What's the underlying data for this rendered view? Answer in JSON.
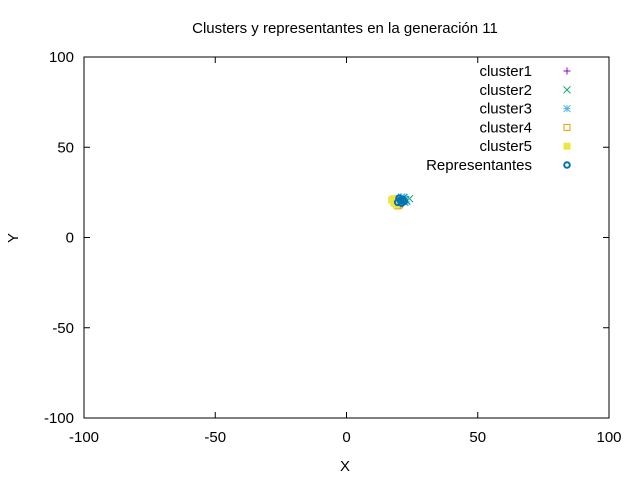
{
  "chart_data": {
    "type": "scatter",
    "title": "Clusters y representantes en la generación 11",
    "xlabel": "X",
    "ylabel": "Y",
    "xlim": [
      -100,
      100
    ],
    "ylim": [
      -100,
      100
    ],
    "xticks": [
      "-100",
      "-50",
      "0",
      "50",
      "100"
    ],
    "yticks": [
      "100",
      "50",
      "0",
      "-50",
      "-100"
    ],
    "grid": false,
    "legend_position": "top-right",
    "series": [
      {
        "name": "cluster1",
        "marker": "plus",
        "color": "#9400d3",
        "points": [
          [
            20.5,
            20.2
          ],
          [
            21.3,
            19.8
          ],
          [
            19.9,
            21.0
          ],
          [
            22.0,
            20.5
          ],
          [
            20.8,
            18.9
          ]
        ]
      },
      {
        "name": "cluster2",
        "marker": "cross",
        "color": "#009e73",
        "points": [
          [
            22.5,
            21.0
          ],
          [
            23.0,
            20.2
          ],
          [
            21.8,
            22.3
          ],
          [
            24.0,
            21.5
          ],
          [
            22.2,
            19.5
          ],
          [
            20.9,
            21.8
          ]
        ]
      },
      {
        "name": "cluster3",
        "marker": "star",
        "color": "#56b4e9",
        "points": [
          [
            20.0,
            21.5
          ],
          [
            21.0,
            22.5
          ],
          [
            19.5,
            20.8
          ],
          [
            22.0,
            22.0
          ],
          [
            20.5,
            19.5
          ],
          [
            21.5,
            20.8
          ],
          [
            19.0,
            21.2
          ],
          [
            22.8,
            20.0
          ]
        ]
      },
      {
        "name": "cluster4",
        "marker": "square-open",
        "color": "#e69f00",
        "points": [
          [
            18.5,
            19.0
          ],
          [
            19.5,
            17.5
          ],
          [
            20.2,
            18.0
          ],
          [
            18.9,
            20.4
          ]
        ]
      },
      {
        "name": "cluster5",
        "marker": "square-filled",
        "color": "#f0e442",
        "points": [
          [
            17.2,
            20.8
          ],
          [
            18.0,
            19.2
          ],
          [
            19.0,
            18.0
          ],
          [
            17.8,
            21.5
          ],
          [
            18.7,
            20.0
          ]
        ]
      },
      {
        "name": "Representantes",
        "marker": "circle-bold",
        "color": "#0072b2",
        "points": [
          [
            20.5,
            20.5
          ],
          [
            21.5,
            21.0
          ],
          [
            19.5,
            19.5
          ],
          [
            22.0,
            20.0
          ],
          [
            20.0,
            21.8
          ],
          [
            21.0,
            19.0
          ]
        ]
      }
    ]
  }
}
